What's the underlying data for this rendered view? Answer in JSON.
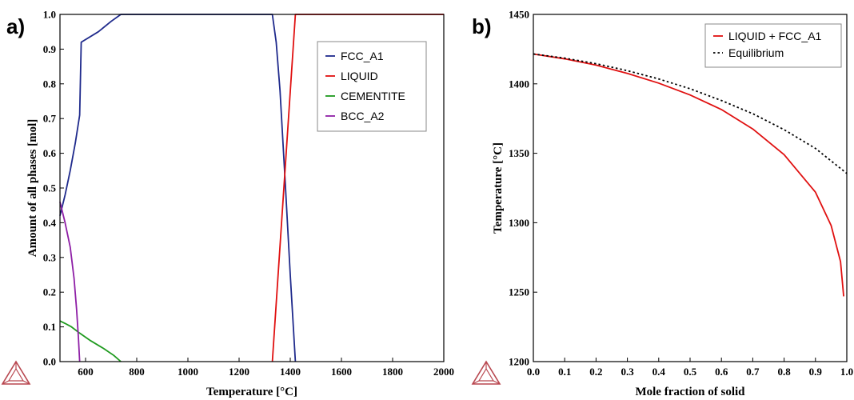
{
  "panels": {
    "a": {
      "letter": "a)"
    },
    "b": {
      "letter": "b)"
    }
  },
  "colors": {
    "fcc": "#1f2a8c",
    "liquid": "#e01010",
    "cementite": "#1e9a1e",
    "bcc": "#8e1fa6",
    "equilibrium": "#000000",
    "logo": "#b8474f"
  },
  "chart_data": [
    {
      "type": "line",
      "xlabel": "Temperature [°C]",
      "ylabel": "Amount of all phases [mol]",
      "xlim": [
        500,
        2000
      ],
      "ylim": [
        0,
        1.0
      ],
      "x_ticks": [
        "600",
        "800",
        "1000",
        "1200",
        "1400",
        "1600",
        "1800",
        "2000"
      ],
      "y_ticks": [
        "0.0",
        "0.1",
        "0.2",
        "0.3",
        "0.4",
        "0.5",
        "0.6",
        "0.7",
        "0.8",
        "0.9",
        "1.0"
      ],
      "grid": false,
      "legend_position": "top-right",
      "series": [
        {
          "name": "FCC_A1",
          "color": "fcc",
          "points": [
            [
              500,
              0.42
            ],
            [
              520,
              0.48
            ],
            [
              540,
              0.55
            ],
            [
              560,
              0.63
            ],
            [
              577,
              0.71
            ],
            [
              583,
              0.92
            ],
            [
              650,
              0.95
            ],
            [
              700,
              0.98
            ],
            [
              738,
              1.0
            ],
            [
              1330,
              1.0
            ],
            [
              1345,
              0.92
            ],
            [
              1360,
              0.78
            ],
            [
              1380,
              0.52
            ],
            [
              1400,
              0.25
            ],
            [
              1420,
              0.0
            ]
          ]
        },
        {
          "name": "LIQUID",
          "color": "liquid",
          "points": [
            [
              1330,
              0.0
            ],
            [
              1375,
              0.5
            ],
            [
              1420,
              1.0
            ],
            [
              2000,
              1.0
            ]
          ]
        },
        {
          "name": "CEMENTITE",
          "color": "cementite",
          "points": [
            [
              500,
              0.117
            ],
            [
              520,
              0.11
            ],
            [
              545,
              0.1
            ],
            [
              577,
              0.082
            ],
            [
              620,
              0.06
            ],
            [
              670,
              0.038
            ],
            [
              710,
              0.018
            ],
            [
              738,
              0.0
            ]
          ]
        },
        {
          "name": "BCC_A2",
          "color": "bcc",
          "points": [
            [
              500,
              0.46
            ],
            [
              520,
              0.4
            ],
            [
              540,
              0.33
            ],
            [
              555,
              0.24
            ],
            [
              565,
              0.15
            ],
            [
              572,
              0.07
            ],
            [
              577,
              0.0
            ]
          ]
        }
      ]
    },
    {
      "type": "line",
      "xlabel": "Mole fraction of solid",
      "ylabel": "Temperature [°C]",
      "xlim": [
        0,
        1.0
      ],
      "ylim": [
        1200,
        1450
      ],
      "x_ticks": [
        "0.0",
        "0.1",
        "0.2",
        "0.3",
        "0.4",
        "0.5",
        "0.6",
        "0.7",
        "0.8",
        "0.9",
        "1.0"
      ],
      "y_ticks": [
        "1200",
        "1250",
        "1300",
        "1350",
        "1400",
        "1450"
      ],
      "grid": false,
      "legend_position": "top-right",
      "series": [
        {
          "name": "LIQUID + FCC_A1",
          "color": "liquid",
          "style": "solid",
          "points": [
            [
              0.0,
              1421.5
            ],
            [
              0.1,
              1418.0
            ],
            [
              0.2,
              1413.5
            ],
            [
              0.3,
              1407.5
            ],
            [
              0.4,
              1400.5
            ],
            [
              0.5,
              1392.0
            ],
            [
              0.6,
              1381.5
            ],
            [
              0.7,
              1367.5
            ],
            [
              0.8,
              1349.0
            ],
            [
              0.9,
              1322.0
            ],
            [
              0.95,
              1298.0
            ],
            [
              0.98,
              1272.0
            ],
            [
              0.99,
              1247.0
            ]
          ]
        },
        {
          "name": "Equilibrium",
          "color": "equilibrium",
          "style": "dotted",
          "points": [
            [
              0.0,
              1421.5
            ],
            [
              0.1,
              1418.5
            ],
            [
              0.2,
              1414.5
            ],
            [
              0.3,
              1409.5
            ],
            [
              0.4,
              1403.5
            ],
            [
              0.5,
              1396.5
            ],
            [
              0.6,
              1388.0
            ],
            [
              0.7,
              1378.5
            ],
            [
              0.8,
              1367.0
            ],
            [
              0.9,
              1353.5
            ],
            [
              1.0,
              1335.5
            ]
          ]
        }
      ]
    }
  ]
}
